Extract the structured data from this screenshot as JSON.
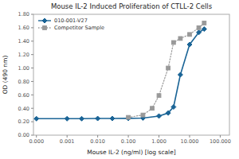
{
  "chart_data": {
    "type": "line",
    "title": "Mouse IL-2 Induced Proliferation of CTLL-2 Cells",
    "x_label": "Mouse IL-2 (ng/ml) [log scale]",
    "y_label": "OD (490 nm)",
    "log": "x",
    "xlim": [
      8e-05,
      200.0
    ],
    "xticks": [
      {
        "value": 0.0001,
        "label": "0.000"
      },
      0.001,
      {
        "value": 0.01,
        "label": "0.010"
      },
      {
        "value": 0.1,
        "label": "0.100"
      },
      {
        "value": 1.0,
        "label": "1.000"
      },
      {
        "value": 10.0,
        "label": "10.000"
      },
      {
        "value": 100.0,
        "label": "100.000"
      }
    ],
    "ylim": [
      0.0,
      1.8
    ],
    "yticks": [
      {
        "value": 0.0,
        "label": "0.00"
      },
      {
        "value": 0.2,
        "label": "0.20"
      },
      {
        "value": 0.4,
        "label": "0.40"
      },
      {
        "value": 0.6,
        "label": "0.60"
      },
      {
        "value": 0.8,
        "label": "0.80"
      },
      {
        "value": 1.0,
        "label": "1.00"
      },
      {
        "value": 1.2,
        "label": "1.20"
      },
      {
        "value": 1.4,
        "label": "1.40"
      },
      {
        "value": 1.6,
        "label": "1.60"
      },
      {
        "value": 1.8,
        "label": "1.80"
      }
    ],
    "grid": false,
    "legend": "upper left",
    "series": [
      {
        "name": "010-001-V27",
        "color": "#1a6496",
        "marker": "diamond",
        "line_style": "solid",
        "x": [
          0.0001,
          0.001,
          0.003,
          0.01,
          0.03,
          0.1,
          0.3,
          1.0,
          2.0,
          3.0,
          5.0,
          10.0,
          20.0,
          30.0
        ],
        "values": [
          0.245,
          0.245,
          0.245,
          0.248,
          0.248,
          0.25,
          0.255,
          0.285,
          0.33,
          0.42,
          0.9,
          1.35,
          1.53,
          1.58
        ]
      },
      {
        "name": "Competitor Sample",
        "color": "#999999",
        "marker": "square",
        "line_style": "dotted",
        "x": [
          0.1,
          0.3,
          0.6,
          1.0,
          2.0,
          3.0,
          5.0,
          10.0,
          20.0,
          30.0
        ],
        "values": [
          0.265,
          0.3,
          0.4,
          0.59,
          1.0,
          1.38,
          1.44,
          1.5,
          1.6,
          1.67
        ]
      }
    ]
  }
}
